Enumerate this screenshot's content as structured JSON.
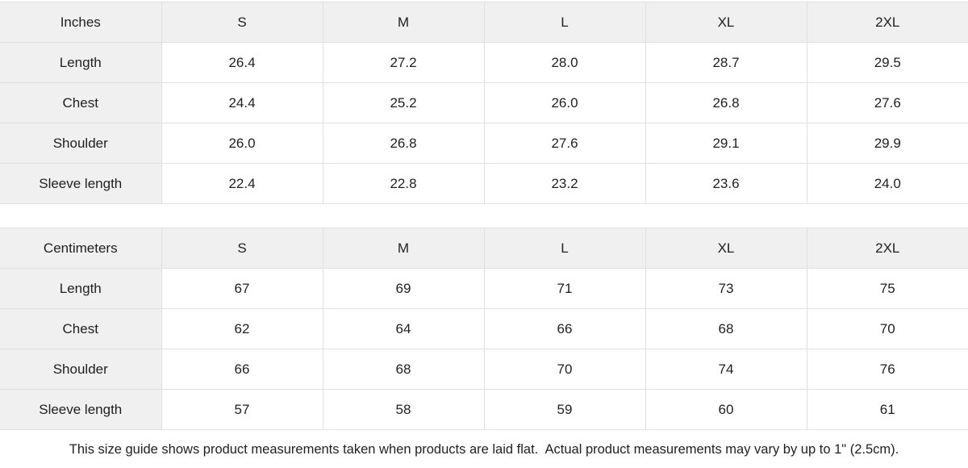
{
  "tables": [
    {
      "unit": "Inches",
      "sizes": [
        "S",
        "M",
        "L",
        "XL",
        "2XL"
      ],
      "rows": [
        {
          "label": "Length",
          "values": [
            "26.4",
            "27.2",
            "28.0",
            "28.7",
            "29.5"
          ]
        },
        {
          "label": "Chest",
          "values": [
            "24.4",
            "25.2",
            "26.0",
            "26.8",
            "27.6"
          ]
        },
        {
          "label": "Shoulder",
          "values": [
            "26.0",
            "26.8",
            "27.6",
            "29.1",
            "29.9"
          ]
        },
        {
          "label": "Sleeve length",
          "values": [
            "22.4",
            "22.8",
            "23.2",
            "23.6",
            "24.0"
          ]
        }
      ]
    },
    {
      "unit": "Centimeters",
      "sizes": [
        "S",
        "M",
        "L",
        "XL",
        "2XL"
      ],
      "rows": [
        {
          "label": "Length",
          "values": [
            "67",
            "69",
            "71",
            "73",
            "75"
          ]
        },
        {
          "label": "Chest",
          "values": [
            "62",
            "64",
            "66",
            "68",
            "70"
          ]
        },
        {
          "label": "Shoulder",
          "values": [
            "66",
            "68",
            "70",
            "74",
            "76"
          ]
        },
        {
          "label": "Sleeve length",
          "values": [
            "57",
            "58",
            "59",
            "60",
            "61"
          ]
        }
      ]
    }
  ],
  "footer": {
    "note": "This size guide shows product measurements taken when products are laid flat.  Actual product measurements may vary by up to 1\" (2.5cm)."
  },
  "colors": {
    "header_bg": "#f0f0f0",
    "border": "#e0e0e0",
    "text": "#1f1f1f",
    "cell_bg": "#ffffff"
  }
}
